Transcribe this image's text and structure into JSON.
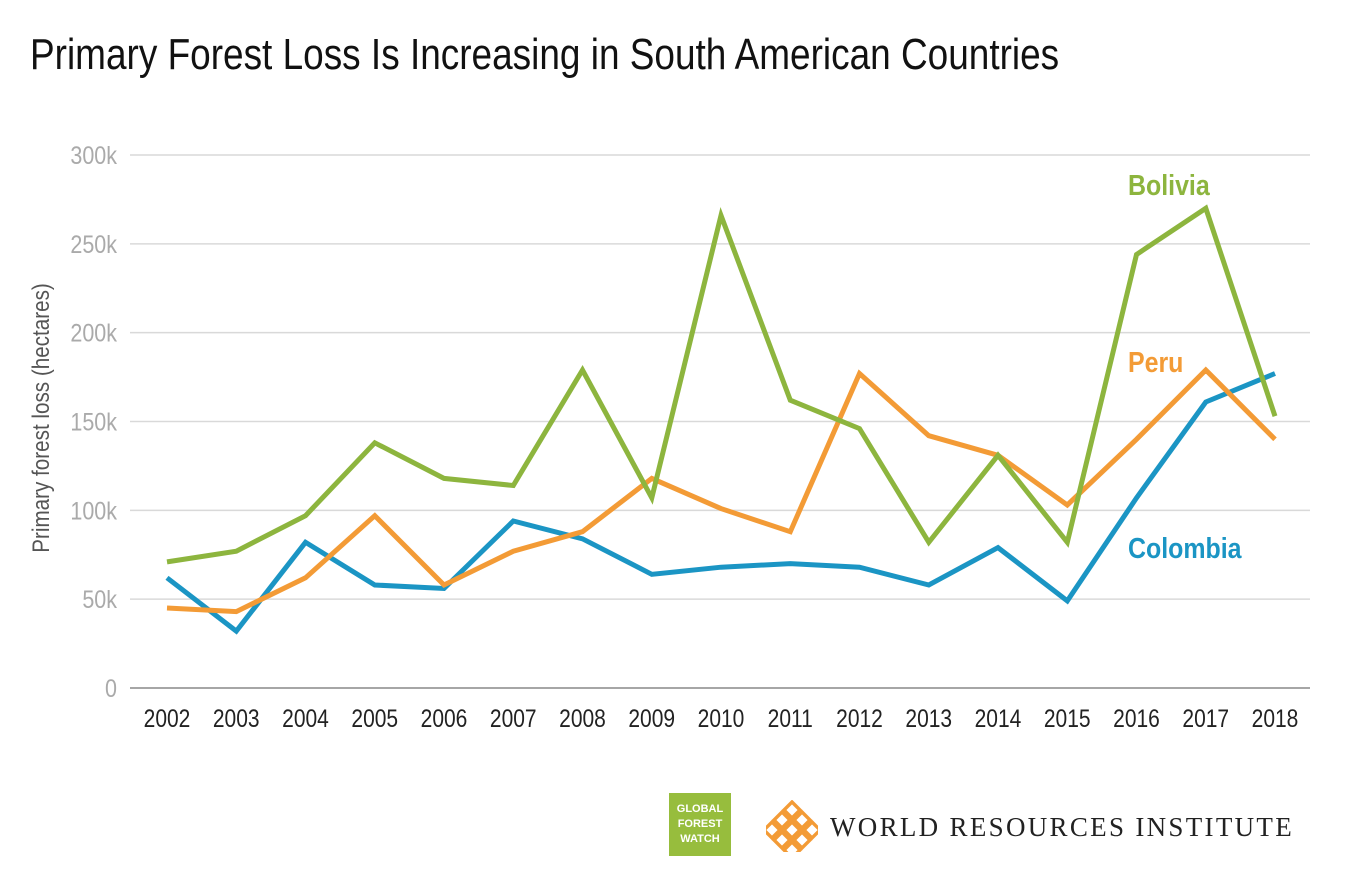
{
  "title": "Primary Forest Loss Is Increasing in South American Countries",
  "chart_data": {
    "type": "line",
    "title": "Primary Forest Loss Is Increasing in South American Countries",
    "xlabel": "",
    "ylabel": "Primary forest loss (hectares)",
    "x": [
      "2002",
      "2003",
      "2004",
      "2005",
      "2006",
      "2007",
      "2008",
      "2009",
      "2010",
      "2011",
      "2012",
      "2013",
      "2014",
      "2015",
      "2016",
      "2017",
      "2018"
    ],
    "ylim": [
      0,
      300000
    ],
    "yticks": [
      0,
      50000,
      100000,
      150000,
      200000,
      250000,
      300000
    ],
    "ytick_labels": [
      "0",
      "50k",
      "100k",
      "150k",
      "200k",
      "250k",
      "300k"
    ],
    "grid": true,
    "series": [
      {
        "name": "Bolivia",
        "color": "#8db53e",
        "values": [
          71000,
          77000,
          97000,
          138000,
          118000,
          114000,
          179000,
          107000,
          266000,
          162000,
          146000,
          82000,
          131000,
          82000,
          244000,
          270000,
          153000
        ]
      },
      {
        "name": "Peru",
        "color": "#f39b36",
        "values": [
          45000,
          43000,
          62000,
          97000,
          58000,
          77000,
          88000,
          118000,
          101000,
          88000,
          177000,
          142000,
          131000,
          103000,
          140000,
          179000,
          140000
        ]
      },
      {
        "name": "Colombia",
        "color": "#1b95c4",
        "values": [
          62000,
          32000,
          82000,
          58000,
          56000,
          94000,
          84000,
          64000,
          68000,
          70000,
          68000,
          58000,
          79000,
          49000,
          107000,
          161000,
          177000
        ]
      }
    ]
  },
  "logos": {
    "gfw_lines": [
      "GLOBAL",
      "FOREST",
      "WATCH"
    ],
    "gfw_color": "#97bd3d",
    "wri_text": "WORLD RESOURCES INSTITUTE",
    "wri_mark_color": "#f39b36"
  }
}
